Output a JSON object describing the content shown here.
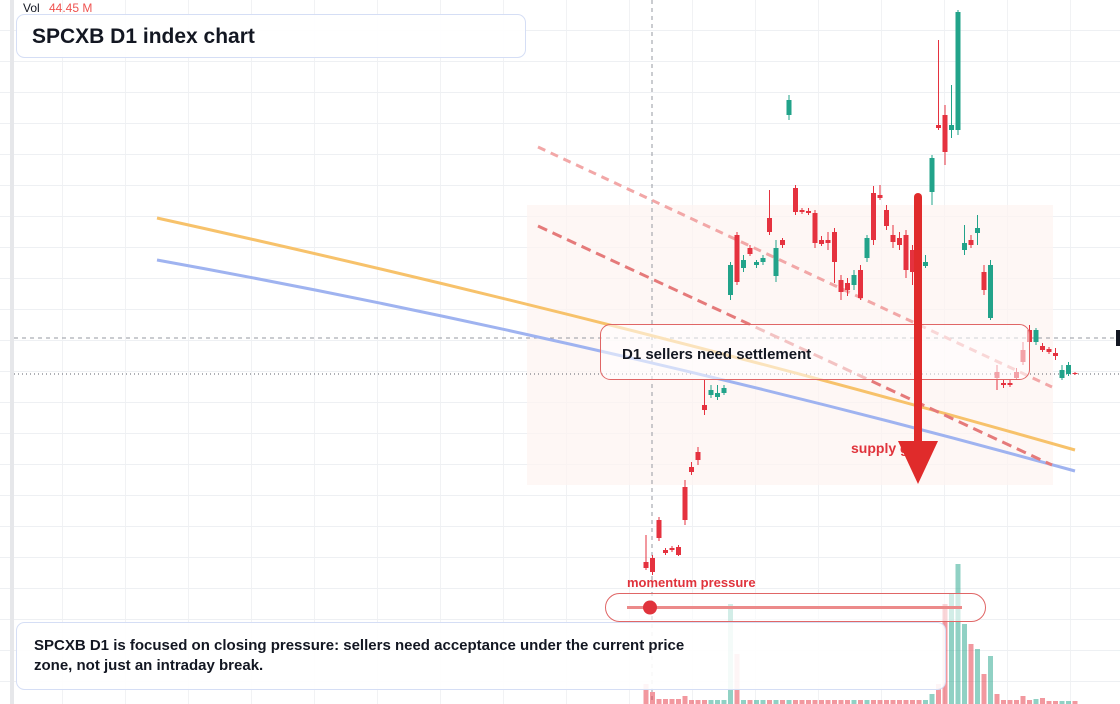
{
  "chart_data": {
    "type": "candlestick",
    "title": "SPCXB D1 index chart",
    "volume_readout": {
      "label": "Vol",
      "value": "44.45 M"
    },
    "zone_label": "D1 sellers need settlement",
    "gate_label": "supply gate",
    "momentum_label": "momentum pressure",
    "note": "SPCXB D1 is focused on closing pressure: sellers need acceptance under the current price zone, not just an intraday break.",
    "ylim": [
      0,
      704
    ],
    "vlim": [
      0,
      704
    ],
    "up_color": "#22a38a",
    "down_color": "#e5323f",
    "open": [
      142,
      146,
      184,
      154,
      156,
      157,
      217,
      237,
      252,
      299,
      309,
      307,
      311,
      409,
      469,
      436,
      456,
      439,
      442,
      486,
      428,
      464,
      589,
      516,
      494,
      493,
      491,
      464,
      464,
      472,
      424,
      421,
      419,
      434,
      446,
      511,
      509,
      494,
      469,
      466,
      469,
      454,
      446,
      438,
      512,
      579,
      589,
      574,
      574,
      454,
      464,
      471,
      432,
      386,
      332,
      321,
      321,
      332,
      354,
      374,
      362,
      358,
      355,
      351,
      326,
      330,
      331
    ],
    "high": [
      169,
      149,
      187,
      156,
      158,
      159,
      224,
      242,
      257,
      324,
      319,
      319,
      319,
      442,
      472,
      449,
      459,
      444,
      449,
      514,
      464,
      466,
      609,
      519,
      496,
      496,
      494,
      468,
      472,
      476,
      429,
      426,
      434,
      439,
      469,
      518,
      519,
      499,
      479,
      472,
      474,
      459,
      454,
      449,
      549,
      664,
      599,
      619,
      694,
      479,
      469,
      489,
      439,
      444,
      339,
      324,
      324,
      336,
      362,
      379,
      376,
      361,
      357,
      356,
      339,
      342,
      332
    ],
    "low": [
      134,
      129,
      163,
      149,
      152,
      148,
      179,
      229,
      239,
      289,
      306,
      304,
      309,
      404,
      419,
      432,
      448,
      436,
      439,
      469,
      422,
      456,
      584,
      489,
      490,
      489,
      456,
      458,
      454,
      421,
      404,
      408,
      414,
      404,
      442,
      459,
      504,
      474,
      456,
      454,
      426,
      419,
      429,
      436,
      499,
      574,
      539,
      566,
      569,
      449,
      456,
      459,
      409,
      384,
      314,
      316,
      317,
      324,
      339,
      334,
      359,
      352,
      350,
      344,
      324,
      328,
      329
    ],
    "close": [
      136,
      132,
      166,
      151,
      154,
      149,
      184,
      232,
      244,
      294,
      314,
      311,
      316,
      439,
      422,
      444,
      450,
      442,
      446,
      472,
      456,
      459,
      604,
      492,
      492,
      491,
      461,
      460,
      461,
      442,
      412,
      414,
      429,
      406,
      466,
      464,
      506,
      478,
      462,
      459,
      434,
      432,
      432,
      442,
      546,
      576,
      552,
      579,
      692,
      461,
      459,
      476,
      414,
      439,
      326,
      319,
      319,
      326,
      342,
      362,
      374,
      354,
      352,
      348,
      334,
      339,
      330
    ],
    "volume": [
      20,
      12,
      5,
      5,
      5,
      5,
      8,
      4,
      4,
      4,
      4,
      4,
      4,
      100,
      50,
      4,
      4,
      4,
      4,
      4,
      4,
      4,
      4,
      4,
      4,
      4,
      4,
      4,
      4,
      4,
      4,
      4,
      4,
      4,
      4,
      4,
      4,
      4,
      4,
      4,
      4,
      4,
      4,
      4,
      10,
      20,
      100,
      110,
      140,
      80,
      60,
      55,
      30,
      48,
      10,
      4,
      4,
      4,
      8,
      4,
      5,
      6,
      3,
      3,
      3,
      3,
      3
    ]
  }
}
